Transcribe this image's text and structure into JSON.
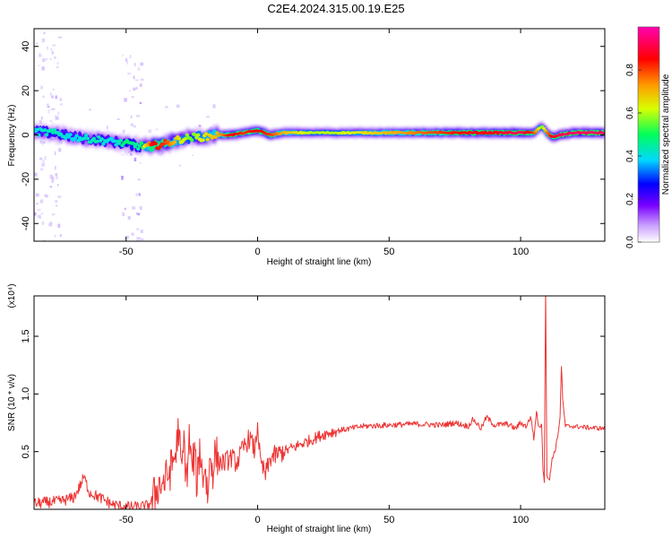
{
  "page_title": "C2E4.2024.315.00.19.E25",
  "chart_data": [
    {
      "type": "heatmap",
      "xlabel": "Height of straight line (km)",
      "ylabel": "Frequency (Hz)",
      "xlim": [
        -85,
        132
      ],
      "ylim": [
        -48,
        48
      ],
      "x_ticks": [
        -50,
        0,
        50,
        100
      ],
      "y_ticks": [
        -40,
        -20,
        0,
        20,
        40
      ],
      "colorbar": {
        "label": "Normalized spectral amplitude",
        "range": [
          0,
          1
        ],
        "ticks": [
          0.0,
          0.2,
          0.4,
          0.6,
          0.8
        ],
        "colors": [
          "#ffffff",
          "#c89cff",
          "#7a00ff",
          "#0000ff",
          "#00d8ff",
          "#00ff5a",
          "#d8ff00",
          "#ff9a00",
          "#ff0000",
          "#ff00b0"
        ]
      },
      "ridge": {
        "x": [
          -85,
          -78,
          -70,
          -62,
          -55,
          -50,
          -45,
          -40,
          -35,
          -30,
          -25,
          -20,
          -15,
          -10,
          -5,
          0,
          5,
          10,
          20,
          30,
          40,
          50,
          60,
          70,
          80,
          90,
          100,
          105,
          108,
          110,
          112,
          115,
          120,
          132
        ],
        "frequency": [
          1.5,
          1,
          -1,
          -2,
          -3,
          -4,
          -5,
          -5,
          -4,
          -2,
          -1,
          -1,
          0,
          0,
          1,
          2,
          0,
          1,
          1,
          1,
          1,
          1,
          1,
          1,
          1,
          1,
          1,
          1,
          4,
          1,
          -1,
          0,
          1,
          1
        ],
        "amplitude": [
          0.45,
          0.5,
          0.45,
          0.5,
          0.45,
          0.55,
          0.5,
          0.9,
          0.85,
          0.7,
          0.6,
          0.7,
          0.75,
          0.9,
          0.85,
          0.9,
          0.85,
          0.75,
          0.65,
          0.65,
          0.7,
          0.75,
          0.8,
          0.85,
          0.9,
          0.9,
          0.95,
          0.85,
          0.6,
          0.8,
          0.9,
          0.95,
          0.95,
          0.95
        ]
      }
    },
    {
      "type": "line",
      "xlabel": "Height of straight line (km)",
      "ylabel": "SNR (10 * v/v)",
      "y_multiplier": "(x10⁴)",
      "xlim": [
        -85,
        132
      ],
      "ylim": [
        0,
        1.85
      ],
      "x_ticks": [
        -50,
        0,
        50,
        100
      ],
      "y_ticks": [
        0.5,
        1.0,
        1.5
      ],
      "series": [
        {
          "color": "#ee3333",
          "x": [
            -85,
            -75,
            -70,
            -68,
            -66,
            -64,
            -60,
            -55,
            -50,
            -45,
            -42,
            -40,
            -38,
            -35,
            -33,
            -31,
            -30,
            -29,
            -28,
            -27,
            -26,
            -25,
            -24,
            -23,
            -22,
            -21,
            -20,
            -19,
            -18,
            -17,
            -16,
            -15,
            -13,
            -10,
            -8,
            -5,
            -3,
            -1,
            0,
            1,
            2,
            3,
            5,
            8,
            10,
            15,
            20,
            25,
            30,
            35,
            40,
            50,
            60,
            70,
            75,
            80,
            82,
            85,
            87,
            90,
            95,
            98,
            100,
            102,
            104,
            105,
            106,
            107,
            108,
            108.5,
            109,
            109.5,
            110,
            111,
            112,
            113,
            114,
            115,
            115.5,
            116,
            117,
            120,
            125,
            132
          ],
          "y": [
            0.05,
            0.07,
            0.1,
            0.18,
            0.28,
            0.15,
            0.1,
            0.04,
            0.02,
            0.02,
            0.03,
            0.08,
            0.2,
            0.25,
            0.35,
            0.5,
            0.72,
            0.3,
            0.58,
            0.25,
            0.62,
            0.35,
            0.48,
            0.2,
            0.55,
            0.28,
            0.38,
            0.12,
            0.45,
            0.35,
            0.5,
            0.42,
            0.4,
            0.45,
            0.4,
            0.55,
            0.62,
            0.5,
            0.75,
            0.4,
            0.35,
            0.3,
            0.45,
            0.48,
            0.5,
            0.55,
            0.6,
            0.65,
            0.68,
            0.7,
            0.72,
            0.73,
            0.74,
            0.73,
            0.75,
            0.72,
            0.78,
            0.7,
            0.8,
            0.73,
            0.74,
            0.7,
            0.75,
            0.72,
            0.8,
            0.6,
            0.85,
            0.7,
            0.75,
            0.35,
            0.25,
            1.9,
            0.3,
            0.25,
            0.45,
            0.5,
            0.62,
            0.8,
            1.25,
            0.95,
            0.72,
            0.72,
            0.71,
            0.7
          ]
        }
      ]
    }
  ]
}
